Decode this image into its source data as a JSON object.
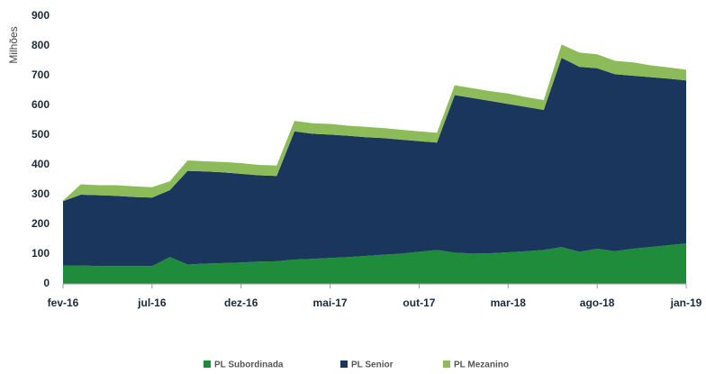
{
  "chart_data": {
    "type": "stacked_area",
    "y_label": "Milhões",
    "categories": [
      "fev-16",
      null,
      null,
      null,
      null,
      "jul-16",
      null,
      null,
      null,
      null,
      "dez-16",
      null,
      null,
      null,
      null,
      "mai-17",
      null,
      null,
      null,
      null,
      "out-17",
      null,
      null,
      null,
      null,
      "mar-18",
      null,
      null,
      null,
      null,
      "ago-18",
      null,
      null,
      null,
      null,
      "jan-19"
    ],
    "series": [
      {
        "name": "PL Subordinada",
        "color": "#1f8c3b",
        "values": [
          62,
          62,
          60,
          60,
          60,
          60,
          90,
          65,
          68,
          70,
          72,
          75,
          76,
          82,
          84,
          87,
          90,
          94,
          98,
          102,
          108,
          114,
          105,
          102,
          103,
          106,
          110,
          114,
          124,
          108,
          118,
          110,
          118,
          124,
          130,
          136
        ]
      },
      {
        "name": "PL Senior",
        "color": "#1b365d",
        "values": [
          216,
          238,
          238,
          236,
          232,
          230,
          225,
          315,
          310,
          305,
          298,
          290,
          287,
          431,
          421,
          415,
          408,
          399,
          392,
          383,
          372,
          361,
          530,
          523,
          512,
          499,
          485,
          471,
          636,
          622,
          607,
          595,
          582,
          571,
          560,
          548
        ]
      },
      {
        "name": "PL Mezanino",
        "color": "#8dbb5a",
        "values": [
          2,
          35,
          34,
          36,
          36,
          35,
          30,
          35,
          34,
          35,
          36,
          35,
          35,
          35,
          35,
          36,
          34,
          35,
          34,
          33,
          33,
          33,
          33,
          33,
          33,
          35,
          33,
          33,
          45,
          48,
          47,
          45,
          45,
          40,
          38,
          36
        ]
      }
    ],
    "ylim": [
      0,
      900
    ],
    "yticks": [
      0,
      100,
      200,
      300,
      400,
      500,
      600,
      700,
      800,
      900
    ],
    "legend": "bottom"
  }
}
